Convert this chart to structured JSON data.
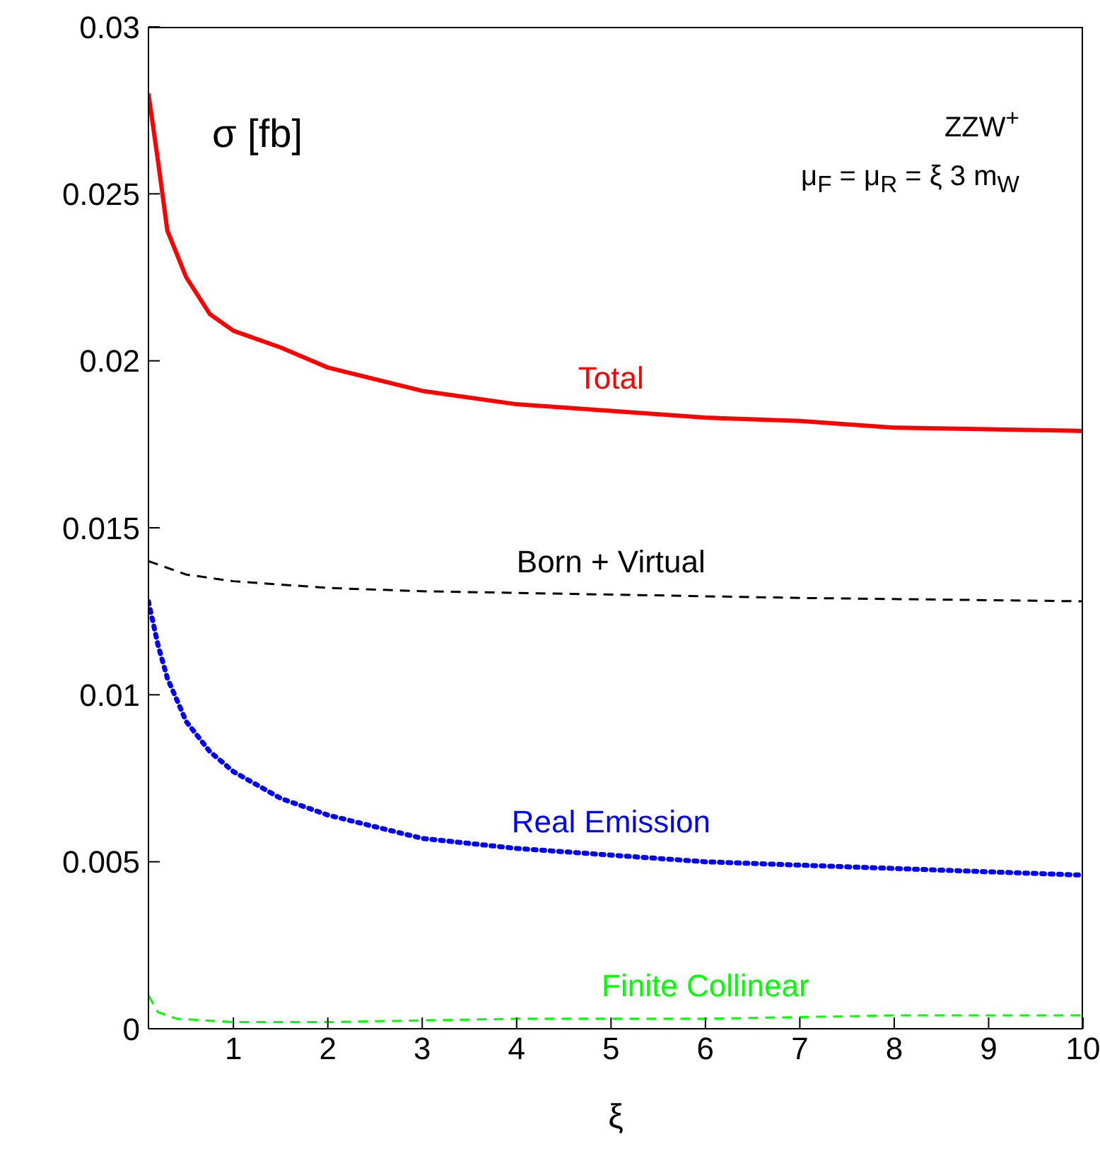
{
  "chart_data": {
    "type": "line",
    "xlabel": "ξ",
    "xlim": [
      0.1,
      10
    ],
    "xticks": [
      1,
      2,
      3,
      4,
      5,
      6,
      7,
      8,
      9,
      10
    ],
    "ylim": [
      0,
      0.03
    ],
    "yticks": [
      0,
      0.005,
      0.01,
      0.015,
      0.02,
      0.025,
      0.03
    ],
    "marker": "none",
    "annotations": [
      "σ [fb]",
      "ZZW$^{+}$",
      "μ$_{F}$ = μ$_{R}$ = ξ 3 m$_{W}$"
    ],
    "series": [
      {
        "name": "Total",
        "color": "#ff0000",
        "line_style": "solid",
        "x": [
          0.1,
          0.2,
          0.3,
          0.5,
          0.75,
          1,
          1.5,
          2,
          3,
          4,
          5,
          6,
          7,
          8,
          10
        ],
        "values": [
          0.028,
          0.026,
          0.0239,
          0.0225,
          0.0214,
          0.0209,
          0.0204,
          0.0198,
          0.0191,
          0.0187,
          0.0185,
          0.0183,
          0.0182,
          0.018,
          0.0179
        ]
      },
      {
        "name": "Born + Virtual",
        "color": "#000000",
        "line_style": "dashed",
        "x": [
          0.1,
          0.5,
          1,
          2,
          3,
          5,
          7,
          10
        ],
        "values": [
          0.014,
          0.0136,
          0.0134,
          0.0132,
          0.0131,
          0.013,
          0.0129,
          0.0128
        ]
      },
      {
        "name": "Real Emission",
        "color": "#0000ff",
        "line_style": "dotted",
        "x": [
          0.1,
          0.2,
          0.3,
          0.5,
          0.75,
          1,
          1.5,
          2,
          3,
          4,
          5,
          6,
          7,
          8,
          10
        ],
        "values": [
          0.0128,
          0.0115,
          0.0105,
          0.0092,
          0.0083,
          0.0077,
          0.0069,
          0.0064,
          0.0057,
          0.0054,
          0.0052,
          0.005,
          0.0049,
          0.0048,
          0.0046
        ]
      },
      {
        "name": "Finite Collinear",
        "color": "#00ff00",
        "line_style": "dashed",
        "x": [
          0.1,
          0.2,
          0.4,
          1,
          2,
          4,
          6,
          8,
          10
        ],
        "values": [
          0.001,
          0.0005,
          0.0003,
          0.0002,
          0.0002,
          0.0003,
          0.0003,
          0.0004,
          0.0004
        ]
      }
    ]
  }
}
